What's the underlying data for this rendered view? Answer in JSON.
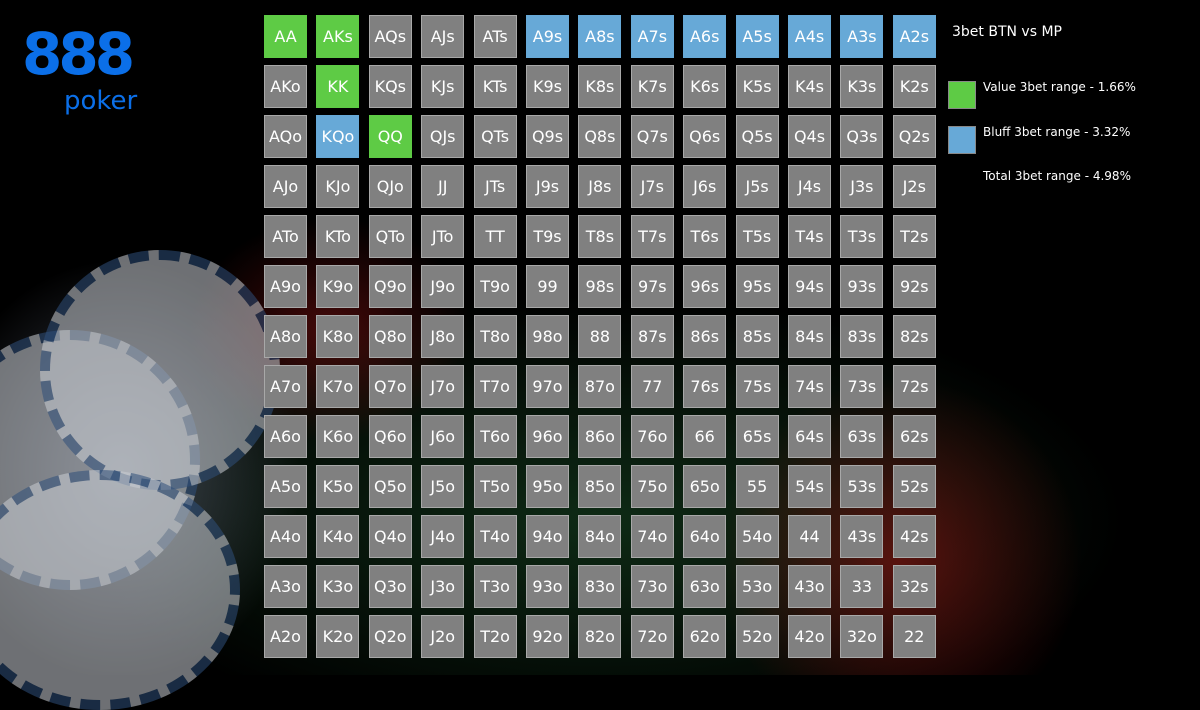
{
  "brand": {
    "logo_number": "888",
    "logo_word": "poker",
    "color": "#0b6fe8"
  },
  "legend": {
    "title": "3bet BTN vs MP",
    "value_label": "Value 3bet range - 1.66%",
    "bluff_label": "Bluff 3bet range - 3.32%",
    "total_label": "Total 3bet range - 4.98%",
    "value_color": "#5ecb45",
    "bluff_color": "#67a9d7",
    "fold_color": "#808080"
  },
  "grid": [
    [
      "AA",
      "AKs",
      "AQs",
      "AJs",
      "ATs",
      "A9s",
      "A8s",
      "A7s",
      "A6s",
      "A5s",
      "A4s",
      "A3s",
      "A2s"
    ],
    [
      "AKo",
      "KK",
      "KQs",
      "KJs",
      "KTs",
      "K9s",
      "K8s",
      "K7s",
      "K6s",
      "K5s",
      "K4s",
      "K3s",
      "K2s"
    ],
    [
      "AQo",
      "KQo",
      "QQ",
      "QJs",
      "QTs",
      "Q9s",
      "Q8s",
      "Q7s",
      "Q6s",
      "Q5s",
      "Q4s",
      "Q3s",
      "Q2s"
    ],
    [
      "AJo",
      "KJo",
      "QJo",
      "JJ",
      "JTs",
      "J9s",
      "J8s",
      "J7s",
      "J6s",
      "J5s",
      "J4s",
      "J3s",
      "J2s"
    ],
    [
      "ATo",
      "KTo",
      "QTo",
      "JTo",
      "TT",
      "T9s",
      "T8s",
      "T7s",
      "T6s",
      "T5s",
      "T4s",
      "T3s",
      "T2s"
    ],
    [
      "A9o",
      "K9o",
      "Q9o",
      "J9o",
      "T9o",
      "99",
      "98s",
      "97s",
      "96s",
      "95s",
      "94s",
      "93s",
      "92s"
    ],
    [
      "A8o",
      "K8o",
      "Q8o",
      "J8o",
      "T8o",
      "98o",
      "88",
      "87s",
      "86s",
      "85s",
      "84s",
      "83s",
      "82s"
    ],
    [
      "A7o",
      "K7o",
      "Q7o",
      "J7o",
      "T7o",
      "97o",
      "87o",
      "77",
      "76s",
      "75s",
      "74s",
      "73s",
      "72s"
    ],
    [
      "A6o",
      "K6o",
      "Q6o",
      "J6o",
      "T6o",
      "96o",
      "86o",
      "76o",
      "66",
      "65s",
      "64s",
      "63s",
      "62s"
    ],
    [
      "A5o",
      "K5o",
      "Q5o",
      "J5o",
      "T5o",
      "95o",
      "85o",
      "75o",
      "65o",
      "55",
      "54s",
      "53s",
      "52s"
    ],
    [
      "A4o",
      "K4o",
      "Q4o",
      "J4o",
      "T4o",
      "94o",
      "84o",
      "74o",
      "64o",
      "54o",
      "44",
      "43s",
      "42s"
    ],
    [
      "A3o",
      "K3o",
      "Q3o",
      "J3o",
      "T3o",
      "93o",
      "83o",
      "73o",
      "63o",
      "53o",
      "43o",
      "33",
      "32s"
    ],
    [
      "A2o",
      "K2o",
      "Q2o",
      "J2o",
      "T2o",
      "92o",
      "82o",
      "72o",
      "62o",
      "52o",
      "42o",
      "32o",
      "22"
    ]
  ],
  "value_hands": [
    "AA",
    "AKs",
    "KK",
    "QQ"
  ],
  "bluff_hands": [
    "A9s",
    "A8s",
    "A7s",
    "A6s",
    "A5s",
    "A4s",
    "A3s",
    "A2s",
    "KQo"
  ]
}
